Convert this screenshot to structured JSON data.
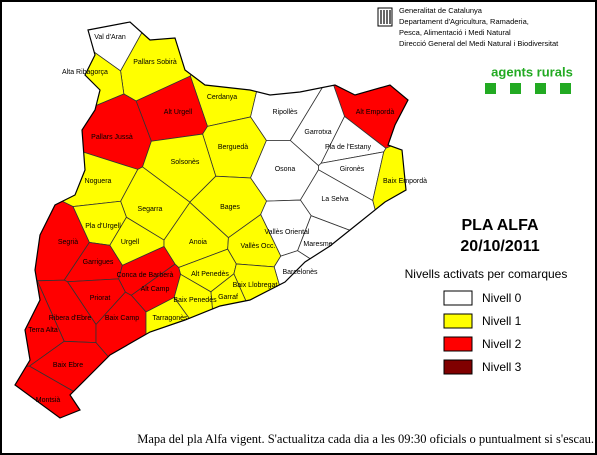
{
  "header": {
    "lines": [
      "Generalitat de Catalunya",
      "Departament d'Agricultura, Ramaderia,",
      "Pesca, Alimentació i Medi Natural",
      "Direcció General del Medi Natural i Biodiversitat"
    ],
    "logo": "agents rurals"
  },
  "title": "PLA ALFA",
  "date": "20/10/2011",
  "legend": {
    "title": "Nivells activats per comarques",
    "items": [
      {
        "label": "Nivell 0",
        "color": "#ffffff"
      },
      {
        "label": "Nivell 1",
        "color": "#ffff00"
      },
      {
        "label": "Nivell 2",
        "color": "#ff0000"
      },
      {
        "label": "Nivell 3",
        "color": "#800000"
      }
    ]
  },
  "regions": [
    {
      "name": "Val d'Aran",
      "color": "#ffffff"
    },
    {
      "name": "Pallars Sobirà",
      "color": "#ffff00"
    },
    {
      "name": "Alta Ribagorça",
      "color": "#ffff00"
    },
    {
      "name": "Cerdanya",
      "color": "#ffff00"
    },
    {
      "name": "Alt Urgell",
      "color": "#ff0000"
    },
    {
      "name": "Pallars Jussà",
      "color": "#ff0000"
    },
    {
      "name": "Ripollès",
      "color": "#ffffff"
    },
    {
      "name": "Alt Empordà",
      "color": "#ff0000"
    },
    {
      "name": "Garrotxa",
      "color": "#ffffff"
    },
    {
      "name": "Pla de l'Estany",
      "color": "#ffffff"
    },
    {
      "name": "Berguedà",
      "color": "#ffff00"
    },
    {
      "name": "Solsonès",
      "color": "#ffff00"
    },
    {
      "name": "Gironès",
      "color": "#ffffff"
    },
    {
      "name": "Osona",
      "color": "#ffffff"
    },
    {
      "name": "Noguera",
      "color": "#ffff00"
    },
    {
      "name": "Baix Empordà",
      "color": "#ffff00"
    },
    {
      "name": "Bages",
      "color": "#ffff00"
    },
    {
      "name": "La Selva",
      "color": "#ffffff"
    },
    {
      "name": "Segarra",
      "color": "#ffff00"
    },
    {
      "name": "Pla d'Urgell",
      "color": "#ffff00"
    },
    {
      "name": "Vallès Oriental",
      "color": "#ffffff"
    },
    {
      "name": "Segrià",
      "color": "#ff0000"
    },
    {
      "name": "Urgell",
      "color": "#ffff00"
    },
    {
      "name": "Anoia",
      "color": "#ffff00"
    },
    {
      "name": "Vallès Occ.",
      "color": "#ffff00"
    },
    {
      "name": "Maresme",
      "color": "#ffffff"
    },
    {
      "name": "Garrigues",
      "color": "#ff0000"
    },
    {
      "name": "Conca de Barberà",
      "color": "#ff0000"
    },
    {
      "name": "Alt Penedès",
      "color": "#ffff00"
    },
    {
      "name": "Barcelonès",
      "color": "#ffffff"
    },
    {
      "name": "Alt Camp",
      "color": "#ff0000"
    },
    {
      "name": "Baix Llobregat",
      "color": "#ffff00"
    },
    {
      "name": "Garraf",
      "color": "#ffff00"
    },
    {
      "name": "Baix Penedès",
      "color": "#ffff00"
    },
    {
      "name": "Priorat",
      "color": "#ff0000"
    },
    {
      "name": "Ribera d'Ebre",
      "color": "#ff0000"
    },
    {
      "name": "Baix Camp",
      "color": "#ff0000"
    },
    {
      "name": "Tarragonès",
      "color": "#ffff00"
    },
    {
      "name": "Terra Alta",
      "color": "#ff0000"
    },
    {
      "name": "Baix Ebre",
      "color": "#ff0000"
    },
    {
      "name": "Montsià",
      "color": "#ff0000"
    }
  ],
  "footer": "Mapa del pla Alfa vigent. S'actualitza cada dia a les 09:30 oficials o puntualment si s'escau."
}
